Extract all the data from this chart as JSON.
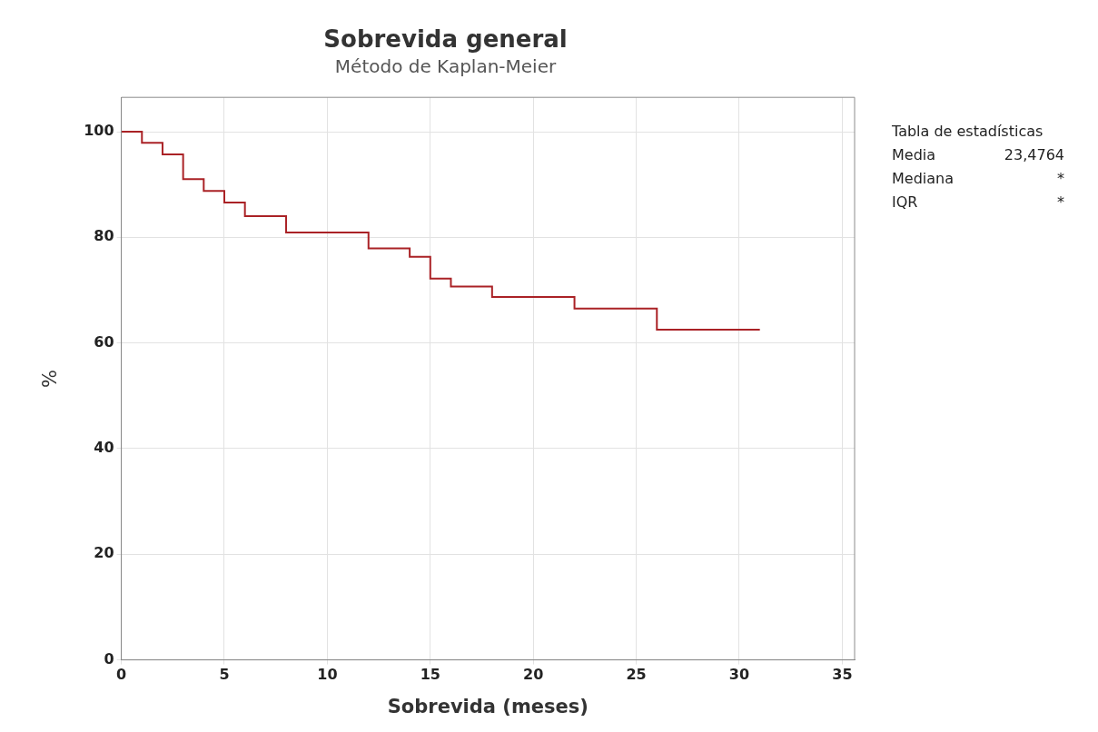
{
  "chart_data": {
    "type": "step",
    "title": "Sobrevida general",
    "subtitle": "Método de Kaplan-Meier",
    "xlabel": "Sobrevida (meses)",
    "ylabel": "%",
    "x": [
      0,
      1,
      2,
      3,
      4,
      5,
      6,
      8,
      12,
      14,
      15,
      16,
      18,
      22,
      26,
      31
    ],
    "series": [
      {
        "color": "#aa2226",
        "values": [
          100,
          97.9,
          95.7,
          91,
          88.8,
          86.6,
          84,
          80.9,
          77.9,
          76.3,
          72.2,
          70.7,
          68.7,
          66.5,
          62.5,
          62.5
        ]
      }
    ],
    "xlim": [
      0,
      35.6
    ],
    "xticks": [
      0,
      5,
      10,
      15,
      20,
      25,
      30,
      35
    ],
    "ylim": [
      0,
      106.5
    ],
    "yticks": [
      0,
      20,
      40,
      60,
      80,
      100
    ],
    "grid": true,
    "legend": false,
    "annotations": [
      "Tabla de estadísticas",
      "Media",
      "23,4764",
      "Mediana",
      "*",
      "IQR",
      "*"
    ]
  }
}
